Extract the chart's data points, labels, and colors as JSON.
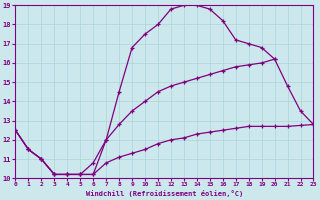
{
  "xlabel": "Windchill (Refroidissement éolien,°C)",
  "background_color": "#cce8ec",
  "line_color": "#800080",
  "grid_color": "#aad4d8",
  "xlim": [
    0,
    23
  ],
  "ylim": [
    10,
    19
  ],
  "xticks": [
    0,
    1,
    2,
    3,
    4,
    5,
    6,
    7,
    8,
    9,
    10,
    11,
    12,
    13,
    14,
    15,
    16,
    17,
    18,
    19,
    20,
    21,
    22,
    23
  ],
  "yticks": [
    10,
    11,
    12,
    13,
    14,
    15,
    16,
    17,
    18,
    19
  ],
  "series": [
    {
      "x": [
        0,
        1,
        2,
        3,
        4,
        5,
        6,
        7,
        8,
        9,
        10,
        11,
        12,
        13,
        14,
        15,
        16,
        17,
        18,
        19,
        20,
        21,
        22,
        23
      ],
      "y": [
        12.5,
        11.5,
        11.0,
        10.2,
        10.2,
        10.2,
        10.2,
        10.8,
        11.1,
        11.3,
        11.5,
        11.8,
        12.0,
        12.1,
        12.3,
        12.4,
        12.5,
        12.6,
        12.7,
        12.7,
        12.7,
        12.7,
        12.75,
        12.8
      ]
    },
    {
      "x": [
        0,
        1,
        2,
        3,
        4,
        5,
        6,
        7,
        8,
        9,
        10,
        11,
        12,
        13,
        14,
        15,
        16,
        17,
        18,
        19,
        20,
        21,
        22,
        23
      ],
      "y": [
        12.5,
        11.5,
        11.0,
        10.2,
        10.2,
        10.2,
        10.2,
        12.0,
        12.8,
        13.5,
        14.0,
        14.5,
        14.8,
        15.0,
        15.2,
        15.4,
        15.6,
        15.8,
        15.9,
        16.0,
        16.2,
        14.8,
        13.5,
        12.8
      ]
    },
    {
      "x": [
        0,
        1,
        2,
        3,
        4,
        5,
        6,
        7,
        8,
        9,
        10,
        11,
        12,
        13,
        14,
        15,
        16,
        17,
        18,
        19,
        20
      ],
      "y": [
        12.5,
        11.5,
        11.0,
        10.2,
        10.2,
        10.2,
        10.8,
        12.0,
        14.5,
        16.8,
        17.5,
        18.0,
        18.8,
        19.0,
        19.0,
        18.8,
        18.2,
        17.2,
        17.0,
        16.8,
        16.2
      ]
    }
  ]
}
